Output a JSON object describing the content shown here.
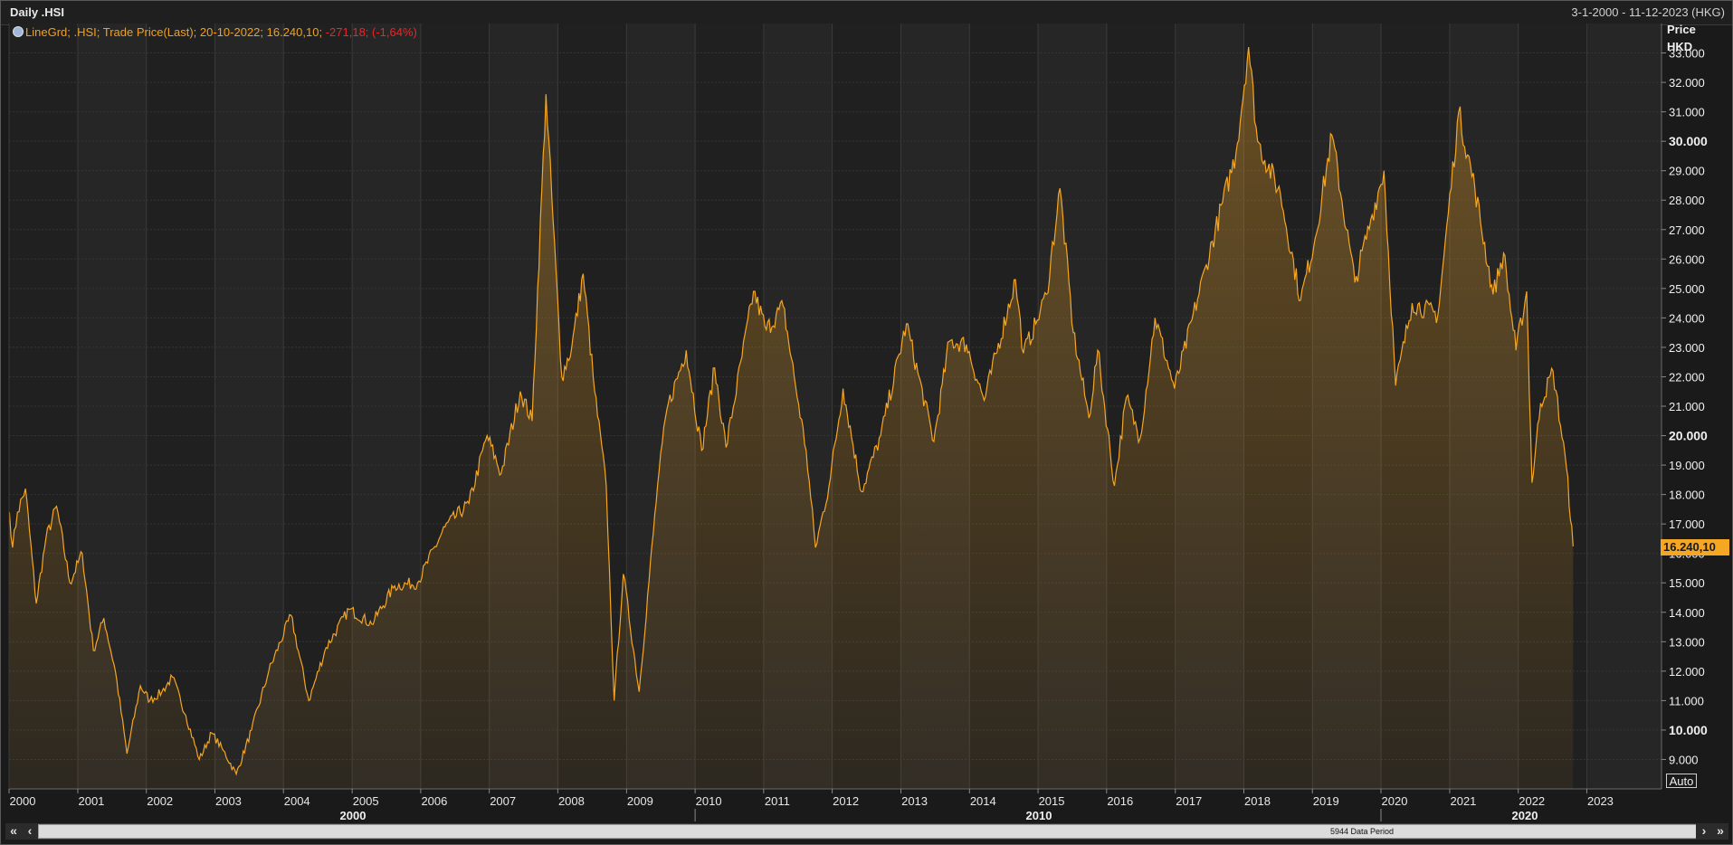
{
  "window": {
    "title": "Daily .HSI",
    "date_range": "3-1-2000 - 11-12-2023 (HKG)"
  },
  "legend": {
    "prefix": "LineGrd; .HSI; Trade Price(Last); 20-10-2022; 16.240,10;",
    "change": "-271,18; (-1,64%)",
    "icon": "clock-icon"
  },
  "axis": {
    "y_label_line1": "Price",
    "y_label_line2": "HKD",
    "last_value_label": "16.240,10",
    "auto_label": "Auto"
  },
  "scroll": {
    "data_period_label": "5944 Data Period",
    "first_icon": "double-chevron-left-icon",
    "prev_icon": "chevron-left-icon",
    "next_icon": "chevron-right-icon",
    "last_icon": "double-chevron-right-icon"
  },
  "colors": {
    "line": "#f5a623",
    "change_negative": "#e8262b",
    "background": "#1a1a1a"
  },
  "chart_data": {
    "type": "area",
    "series": [
      {
        "points": [
          [
            "2000-01-03",
            17400
          ],
          [
            "2000-01-20",
            16200
          ],
          [
            "2000-02-15",
            17400
          ],
          [
            "2000-03-28",
            18200
          ],
          [
            "2000-05-25",
            14300
          ],
          [
            "2000-07-15",
            16500
          ],
          [
            "2000-09-10",
            17600
          ],
          [
            "2000-11-20",
            15000
          ],
          [
            "2001-01-25",
            16000
          ],
          [
            "2001-03-25",
            12700
          ],
          [
            "2001-05-20",
            13800
          ],
          [
            "2001-07-20",
            12000
          ],
          [
            "2001-09-20",
            9200
          ],
          [
            "2001-11-30",
            11500
          ],
          [
            "2002-01-20",
            11000
          ],
          [
            "2002-03-25",
            11300
          ],
          [
            "2002-05-20",
            11800
          ],
          [
            "2002-07-30",
            10500
          ],
          [
            "2002-10-10",
            9000
          ],
          [
            "2002-12-15",
            9900
          ],
          [
            "2003-02-15",
            9300
          ],
          [
            "2003-04-25",
            8500
          ],
          [
            "2003-07-15",
            10000
          ],
          [
            "2003-10-15",
            12000
          ],
          [
            "2004-02-10",
            13900
          ],
          [
            "2004-05-15",
            11000
          ],
          [
            "2004-08-15",
            12800
          ],
          [
            "2004-12-15",
            14100
          ],
          [
            "2005-04-15",
            13600
          ],
          [
            "2005-08-15",
            14900
          ],
          [
            "2005-12-15",
            15000
          ],
          [
            "2006-05-10",
            16900
          ],
          [
            "2006-09-15",
            17700
          ],
          [
            "2006-12-20",
            20000
          ],
          [
            "2007-03-05",
            18700
          ],
          [
            "2007-06-15",
            21500
          ],
          [
            "2007-08-17",
            20500
          ],
          [
            "2007-10-30",
            31600
          ],
          [
            "2008-01-22",
            22000
          ],
          [
            "2008-03-15",
            23000
          ],
          [
            "2008-05-15",
            25500
          ],
          [
            "2008-07-15",
            21500
          ],
          [
            "2008-09-15",
            18300
          ],
          [
            "2008-10-27",
            11000
          ],
          [
            "2008-12-15",
            15300
          ],
          [
            "2009-03-09",
            11300
          ],
          [
            "2009-06-15",
            18300
          ],
          [
            "2009-08-04",
            20900
          ],
          [
            "2009-11-15",
            22900
          ],
          [
            "2010-02-05",
            19500
          ],
          [
            "2010-04-15",
            22300
          ],
          [
            "2010-06-15",
            19600
          ],
          [
            "2010-11-08",
            24900
          ],
          [
            "2011-01-15",
            23600
          ],
          [
            "2011-04-15",
            24400
          ],
          [
            "2011-06-20",
            21700
          ],
          [
            "2011-08-15",
            19500
          ],
          [
            "2011-10-04",
            16200
          ],
          [
            "2011-12-15",
            18300
          ],
          [
            "2012-02-28",
            21600
          ],
          [
            "2012-06-05",
            18100
          ],
          [
            "2012-09-15",
            20000
          ],
          [
            "2013-01-30",
            23800
          ],
          [
            "2013-06-25",
            19800
          ],
          [
            "2013-09-15",
            23200
          ],
          [
            "2013-12-15",
            23100
          ],
          [
            "2014-03-20",
            21200
          ],
          [
            "2014-09-03",
            25300
          ],
          [
            "2014-10-15",
            22800
          ],
          [
            "2014-12-20",
            23800
          ],
          [
            "2015-02-15",
            24800
          ],
          [
            "2015-04-28",
            28400
          ],
          [
            "2015-07-08",
            23500
          ],
          [
            "2015-09-29",
            20600
          ],
          [
            "2015-11-15",
            22900
          ],
          [
            "2016-02-12",
            18300
          ],
          [
            "2016-04-15",
            21300
          ],
          [
            "2016-06-27",
            19900
          ],
          [
            "2016-09-15",
            24000
          ],
          [
            "2016-12-28",
            21600
          ],
          [
            "2017-06-15",
            25800
          ],
          [
            "2017-11-20",
            29600
          ],
          [
            "2018-01-26",
            33200
          ],
          [
            "2018-03-15",
            30000
          ],
          [
            "2018-07-15",
            28200
          ],
          [
            "2018-10-30",
            24600
          ],
          [
            "2019-01-15",
            26700
          ],
          [
            "2019-04-15",
            30200
          ],
          [
            "2019-08-15",
            25200
          ],
          [
            "2019-11-15",
            27500
          ],
          [
            "2020-01-17",
            29000
          ],
          [
            "2020-03-19",
            21700
          ],
          [
            "2020-06-15",
            24500
          ],
          [
            "2020-10-30",
            24100
          ],
          [
            "2021-02-18",
            31000
          ],
          [
            "2021-05-15",
            28400
          ],
          [
            "2021-08-20",
            24800
          ],
          [
            "2021-10-15",
            26200
          ],
          [
            "2021-12-20",
            22900
          ],
          [
            "2022-02-15",
            24900
          ],
          [
            "2022-03-15",
            18400
          ],
          [
            "2022-04-30",
            21100
          ],
          [
            "2022-07-05",
            22200
          ],
          [
            "2022-09-15",
            18900
          ],
          [
            "2022-10-20",
            16240
          ]
        ]
      }
    ],
    "x_labels": [
      "2000",
      "2001",
      "2002",
      "2003",
      "2004",
      "2005",
      "2006",
      "2007",
      "2008",
      "2009",
      "2010",
      "2011",
      "2012",
      "2013",
      "2014",
      "2015",
      "2016",
      "2017",
      "2018",
      "2019",
      "2020",
      "2021",
      "2022",
      "2023"
    ],
    "x_group_labels": [
      "2000",
      "2010",
      "2020"
    ],
    "y_ticks": [
      "9.000",
      "10.000",
      "11.000",
      "12.000",
      "13.000",
      "14.000",
      "15.000",
      "16.000",
      "17.000",
      "18.000",
      "19.000",
      "20.000",
      "21.000",
      "22.000",
      "23.000",
      "24.000",
      "25.000",
      "26.000",
      "27.000",
      "28.000",
      "29.000",
      "30.000",
      "31.000",
      "32.000",
      "33.000"
    ],
    "y_bold_ticks": [
      "10.000",
      "20.000",
      "30.000"
    ],
    "ylim": [
      8000,
      34000
    ],
    "grid": true,
    "legend_position": "top-left"
  }
}
